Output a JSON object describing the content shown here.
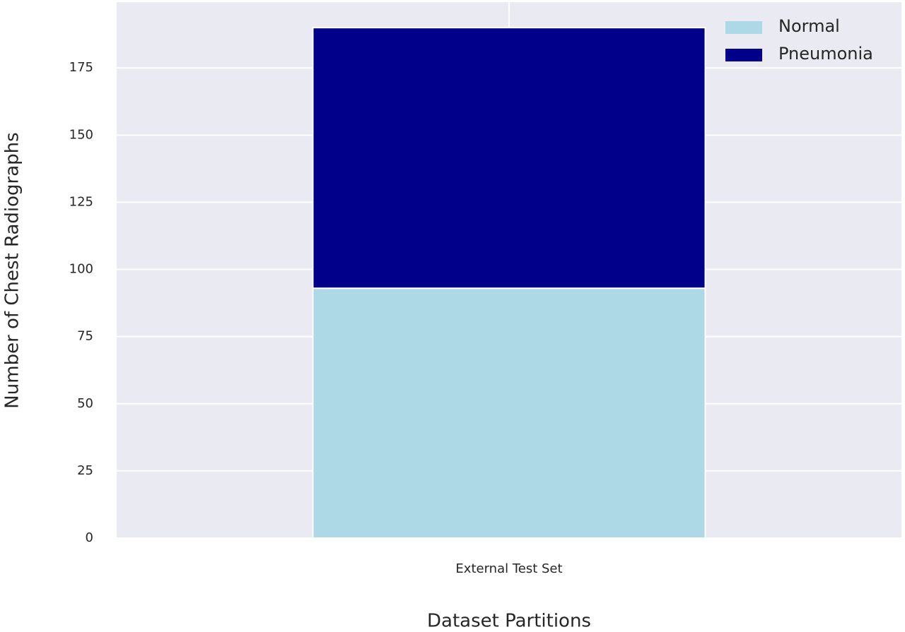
{
  "chart_data": {
    "type": "stacked_bar",
    "x_label": "Dataset Partitions",
    "y_label": "Number of Chest Radiographs",
    "categories": [
      "External Test Set"
    ],
    "series": [
      {
        "name": "Normal",
        "color": "#add8e6",
        "values": [
          93
        ]
      },
      {
        "name": "Pneumonia",
        "color": "#00008b",
        "values": [
          97
        ]
      }
    ],
    "ylim": [
      0,
      199.5
    ],
    "yticks": [
      0,
      25,
      50,
      75,
      100,
      125,
      150,
      175
    ],
    "grid": true,
    "legend": "upper-right"
  }
}
